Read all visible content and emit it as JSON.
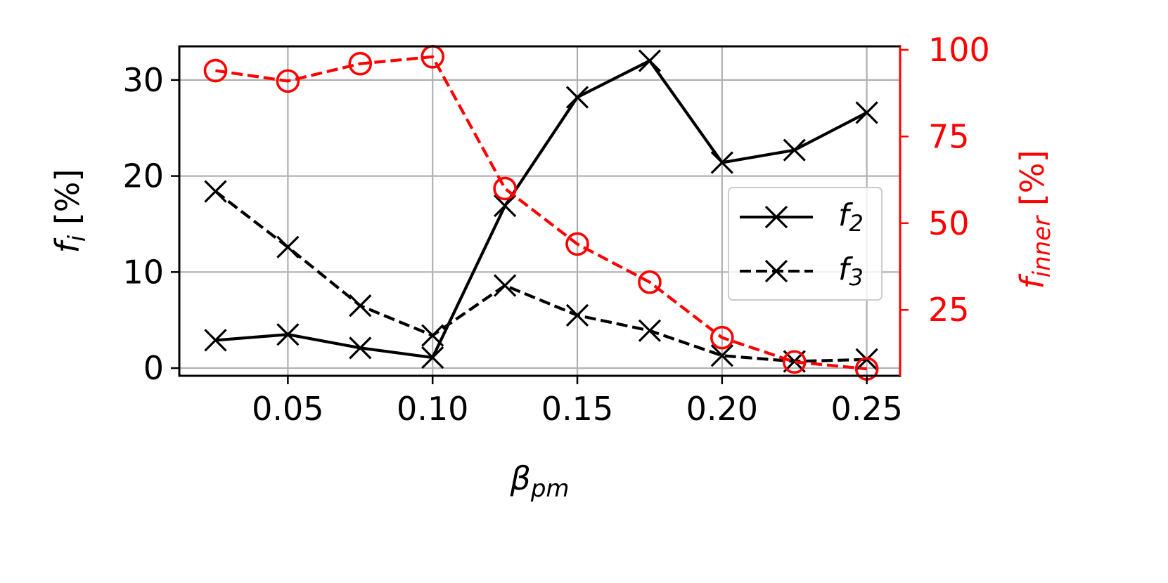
{
  "chart_data": {
    "type": "line",
    "xlabel": {
      "main": "β",
      "sub": "pm"
    },
    "ylabel_left": {
      "main": "f",
      "sub": "i",
      "unit": " [%]"
    },
    "ylabel_right": {
      "main": "f",
      "sub": "inner",
      "unit": " [%]"
    },
    "xlim": [
      0.0125,
      0.2615
    ],
    "ylim_left": [
      -0.8,
      33.5
    ],
    "ylim_right": [
      6,
      101
    ],
    "xticks": [
      "0.05",
      "0.10",
      "0.15",
      "0.20",
      "0.25"
    ],
    "xtick_values": [
      0.05,
      0.1,
      0.15,
      0.2,
      0.25
    ],
    "yticks_left": [
      "0",
      "10",
      "20",
      "30"
    ],
    "ytick_values_left": [
      0,
      10,
      20,
      30
    ],
    "yticks_right": [
      "25",
      "50",
      "75",
      "100"
    ],
    "ytick_values_right": [
      25,
      50,
      75,
      100
    ],
    "x": [
      0.025,
      0.05,
      0.075,
      0.1,
      0.125,
      0.15,
      0.175,
      0.2,
      0.225,
      0.25
    ],
    "series": [
      {
        "name": "f2",
        "label_main": "f",
        "label_sub": "2",
        "axis": "left",
        "style": "solid",
        "marker": "x",
        "color": "#000000",
        "values": [
          2.9,
          3.5,
          2.1,
          1.1,
          16.9,
          28.2,
          32.0,
          21.4,
          22.7,
          26.6
        ]
      },
      {
        "name": "f3",
        "label_main": "f",
        "label_sub": "3",
        "axis": "left",
        "style": "dashed",
        "marker": "x",
        "color": "#000000",
        "values": [
          18.4,
          12.6,
          6.5,
          3.4,
          8.6,
          5.5,
          3.9,
          1.3,
          0.7,
          0.9
        ]
      },
      {
        "name": "f_inner",
        "axis": "right",
        "style": "dashed",
        "marker": "o",
        "color": "#ff0000",
        "values": [
          94,
          91,
          96,
          98,
          60,
          44,
          33,
          17,
          10,
          8
        ]
      }
    ],
    "grid": true,
    "legend": "center-right",
    "colors": {
      "left_axis": "#000000",
      "right_axis": "#ff0000",
      "grid": "#b0b0b0"
    }
  }
}
